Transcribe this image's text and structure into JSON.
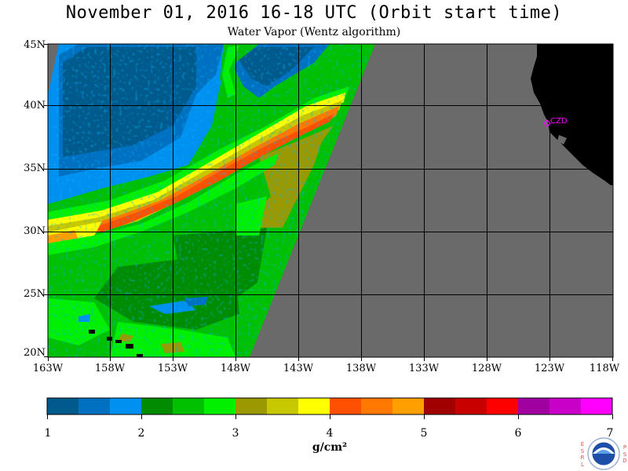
{
  "title": "November 01, 2016  16-18 UTC  (Orbit start time)",
  "subtitle": "Water Vapor (Wentz algorithm)",
  "map": {
    "lat_labels": [
      "45N",
      "40N",
      "35N",
      "30N",
      "25N",
      "20N"
    ],
    "lon_labels": [
      "163W",
      "158W",
      "153W",
      "148W",
      "143W",
      "138W",
      "133W",
      "128W",
      "123W",
      "118W"
    ],
    "station_label": "CZD",
    "colors": {
      "no_data": "#6a6a6a",
      "land": "#000000",
      "grid": "#000000",
      "station": "#ff00ff"
    }
  },
  "colorbar": {
    "ticks": [
      "1",
      "2",
      "3",
      "4",
      "5",
      "6",
      "7"
    ],
    "units": "g/cm²",
    "colors": [
      "#005a8c",
      "#0070c0",
      "#0090f0",
      "#008c00",
      "#00c000",
      "#00f000",
      "#9a9a00",
      "#c8c800",
      "#ffff00",
      "#ff5000",
      "#ff7800",
      "#ffa000",
      "#a00000",
      "#c80000",
      "#ff0000",
      "#a000a0",
      "#c800c8",
      "#ff00ff"
    ]
  },
  "logo": {
    "name": "noaa-logo",
    "left_letters": "ESRL",
    "right_letters": "PSD"
  }
}
